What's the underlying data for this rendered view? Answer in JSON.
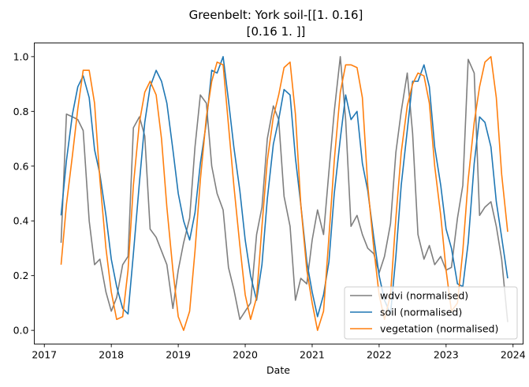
{
  "chart_data": {
    "type": "line",
    "title_lines": [
      "Greenbelt: York soil-[[1.   0.16]",
      "[0.16 1.  ]]"
    ],
    "xlabel": "Date",
    "ylabel": "",
    "x_ticks": [
      "2017",
      "2018",
      "2019",
      "2020",
      "2021",
      "2022",
      "2023",
      "2024"
    ],
    "y_ticks": [
      "0.0",
      "0.2",
      "0.4",
      "0.6",
      "0.8",
      "1.0"
    ],
    "xlim": [
      2016.85,
      2024.15
    ],
    "ylim": [
      -0.05,
      1.05
    ],
    "grid": false,
    "legend_position": "lower-right",
    "series": [
      {
        "name": "wdvi (normalised)",
        "color": "#7f7f7f",
        "points": [
          [
            2017.25,
            0.32
          ],
          [
            2017.33,
            0.79
          ],
          [
            2017.42,
            0.78
          ],
          [
            2017.5,
            0.77
          ],
          [
            2017.58,
            0.73
          ],
          [
            2017.67,
            0.4
          ],
          [
            2017.75,
            0.24
          ],
          [
            2017.83,
            0.26
          ],
          [
            2017.92,
            0.14
          ],
          [
            2018.0,
            0.07
          ],
          [
            2018.08,
            0.12
          ],
          [
            2018.17,
            0.24
          ],
          [
            2018.25,
            0.27
          ],
          [
            2018.33,
            0.74
          ],
          [
            2018.42,
            0.78
          ],
          [
            2018.5,
            0.71
          ],
          [
            2018.58,
            0.37
          ],
          [
            2018.67,
            0.34
          ],
          [
            2018.75,
            0.29
          ],
          [
            2018.83,
            0.24
          ],
          [
            2018.92,
            0.08
          ],
          [
            2019.0,
            0.22
          ],
          [
            2019.08,
            0.32
          ],
          [
            2019.17,
            0.41
          ],
          [
            2019.25,
            0.67
          ],
          [
            2019.33,
            0.86
          ],
          [
            2019.42,
            0.83
          ],
          [
            2019.5,
            0.6
          ],
          [
            2019.58,
            0.5
          ],
          [
            2019.67,
            0.44
          ],
          [
            2019.75,
            0.23
          ],
          [
            2019.83,
            0.15
          ],
          [
            2019.92,
            0.04
          ],
          [
            2020.0,
            0.07
          ],
          [
            2020.08,
            0.1
          ],
          [
            2020.17,
            0.35
          ],
          [
            2020.25,
            0.45
          ],
          [
            2020.33,
            0.7
          ],
          [
            2020.42,
            0.82
          ],
          [
            2020.5,
            0.77
          ],
          [
            2020.58,
            0.49
          ],
          [
            2020.67,
            0.38
          ],
          [
            2020.75,
            0.11
          ],
          [
            2020.83,
            0.19
          ],
          [
            2020.92,
            0.17
          ],
          [
            2021.0,
            0.33
          ],
          [
            2021.08,
            0.44
          ],
          [
            2021.17,
            0.35
          ],
          [
            2021.25,
            0.58
          ],
          [
            2021.33,
            0.8
          ],
          [
            2021.42,
            1.0
          ],
          [
            2021.5,
            0.77
          ],
          [
            2021.58,
            0.38
          ],
          [
            2021.67,
            0.42
          ],
          [
            2021.75,
            0.35
          ],
          [
            2021.83,
            0.3
          ],
          [
            2021.92,
            0.28
          ],
          [
            2022.0,
            0.21
          ],
          [
            2022.08,
            0.27
          ],
          [
            2022.17,
            0.39
          ],
          [
            2022.25,
            0.65
          ],
          [
            2022.33,
            0.8
          ],
          [
            2022.42,
            0.94
          ],
          [
            2022.5,
            0.72
          ],
          [
            2022.58,
            0.35
          ],
          [
            2022.67,
            0.26
          ],
          [
            2022.75,
            0.31
          ],
          [
            2022.83,
            0.24
          ],
          [
            2022.92,
            0.27
          ],
          [
            2023.0,
            0.22
          ],
          [
            2023.08,
            0.23
          ],
          [
            2023.17,
            0.41
          ],
          [
            2023.25,
            0.53
          ],
          [
            2023.33,
            0.99
          ],
          [
            2023.42,
            0.94
          ],
          [
            2023.5,
            0.42
          ],
          [
            2023.58,
            0.45
          ],
          [
            2023.67,
            0.47
          ],
          [
            2023.75,
            0.38
          ],
          [
            2023.83,
            0.26
          ],
          [
            2023.92,
            0.03
          ]
        ]
      },
      {
        "name": "soil (normalised)",
        "color": "#1f77b4",
        "points": [
          [
            2017.25,
            0.42
          ],
          [
            2017.33,
            0.62
          ],
          [
            2017.42,
            0.79
          ],
          [
            2017.5,
            0.89
          ],
          [
            2017.58,
            0.93
          ],
          [
            2017.67,
            0.85
          ],
          [
            2017.75,
            0.66
          ],
          [
            2017.83,
            0.57
          ],
          [
            2017.92,
            0.42
          ],
          [
            2018.0,
            0.26
          ],
          [
            2018.08,
            0.16
          ],
          [
            2018.17,
            0.08
          ],
          [
            2018.25,
            0.06
          ],
          [
            2018.33,
            0.28
          ],
          [
            2018.42,
            0.54
          ],
          [
            2018.5,
            0.76
          ],
          [
            2018.58,
            0.89
          ],
          [
            2018.67,
            0.95
          ],
          [
            2018.75,
            0.91
          ],
          [
            2018.83,
            0.83
          ],
          [
            2018.92,
            0.66
          ],
          [
            2019.0,
            0.5
          ],
          [
            2019.08,
            0.4
          ],
          [
            2019.17,
            0.33
          ],
          [
            2019.25,
            0.43
          ],
          [
            2019.33,
            0.61
          ],
          [
            2019.42,
            0.76
          ],
          [
            2019.5,
            0.95
          ],
          [
            2019.58,
            0.94
          ],
          [
            2019.67,
            1.0
          ],
          [
            2019.75,
            0.84
          ],
          [
            2019.83,
            0.67
          ],
          [
            2019.92,
            0.51
          ],
          [
            2020.0,
            0.33
          ],
          [
            2020.08,
            0.2
          ],
          [
            2020.17,
            0.11
          ],
          [
            2020.25,
            0.24
          ],
          [
            2020.33,
            0.48
          ],
          [
            2020.42,
            0.68
          ],
          [
            2020.5,
            0.77
          ],
          [
            2020.58,
            0.88
          ],
          [
            2020.67,
            0.86
          ],
          [
            2020.75,
            0.63
          ],
          [
            2020.83,
            0.46
          ],
          [
            2020.92,
            0.25
          ],
          [
            2021.0,
            0.14
          ],
          [
            2021.08,
            0.05
          ],
          [
            2021.17,
            0.13
          ],
          [
            2021.25,
            0.25
          ],
          [
            2021.33,
            0.5
          ],
          [
            2021.42,
            0.7
          ],
          [
            2021.5,
            0.86
          ],
          [
            2021.58,
            0.77
          ],
          [
            2021.67,
            0.8
          ],
          [
            2021.75,
            0.61
          ],
          [
            2021.83,
            0.51
          ],
          [
            2021.92,
            0.34
          ],
          [
            2022.0,
            0.2
          ],
          [
            2022.08,
            0.11
          ],
          [
            2022.17,
            0.06
          ],
          [
            2022.25,
            0.27
          ],
          [
            2022.33,
            0.53
          ],
          [
            2022.42,
            0.73
          ],
          [
            2022.5,
            0.91
          ],
          [
            2022.58,
            0.91
          ],
          [
            2022.67,
            0.97
          ],
          [
            2022.75,
            0.89
          ],
          [
            2022.83,
            0.67
          ],
          [
            2022.92,
            0.53
          ],
          [
            2023.0,
            0.37
          ],
          [
            2023.08,
            0.3
          ],
          [
            2023.17,
            0.17
          ],
          [
            2023.25,
            0.16
          ],
          [
            2023.33,
            0.32
          ],
          [
            2023.42,
            0.61
          ],
          [
            2023.5,
            0.78
          ],
          [
            2023.58,
            0.76
          ],
          [
            2023.67,
            0.67
          ],
          [
            2023.75,
            0.47
          ],
          [
            2023.83,
            0.34
          ],
          [
            2023.92,
            0.19
          ]
        ]
      },
      {
        "name": "vegetation (normalised)",
        "color": "#ff7f0e",
        "points": [
          [
            2017.25,
            0.24
          ],
          [
            2017.33,
            0.46
          ],
          [
            2017.42,
            0.64
          ],
          [
            2017.5,
            0.81
          ],
          [
            2017.58,
            0.95
          ],
          [
            2017.67,
            0.95
          ],
          [
            2017.75,
            0.83
          ],
          [
            2017.83,
            0.55
          ],
          [
            2017.92,
            0.3
          ],
          [
            2018.0,
            0.14
          ],
          [
            2018.08,
            0.04
          ],
          [
            2018.17,
            0.05
          ],
          [
            2018.25,
            0.22
          ],
          [
            2018.33,
            0.53
          ],
          [
            2018.42,
            0.76
          ],
          [
            2018.5,
            0.87
          ],
          [
            2018.58,
            0.91
          ],
          [
            2018.67,
            0.86
          ],
          [
            2018.75,
            0.7
          ],
          [
            2018.83,
            0.45
          ],
          [
            2018.92,
            0.22
          ],
          [
            2019.0,
            0.05
          ],
          [
            2019.08,
            0.0
          ],
          [
            2019.17,
            0.07
          ],
          [
            2019.25,
            0.29
          ],
          [
            2019.33,
            0.55
          ],
          [
            2019.42,
            0.78
          ],
          [
            2019.5,
            0.91
          ],
          [
            2019.58,
            0.98
          ],
          [
            2019.67,
            0.97
          ],
          [
            2019.75,
            0.75
          ],
          [
            2019.83,
            0.53
          ],
          [
            2019.92,
            0.31
          ],
          [
            2020.0,
            0.13
          ],
          [
            2020.08,
            0.04
          ],
          [
            2020.17,
            0.12
          ],
          [
            2020.25,
            0.38
          ],
          [
            2020.33,
            0.62
          ],
          [
            2020.42,
            0.78
          ],
          [
            2020.5,
            0.86
          ],
          [
            2020.58,
            0.96
          ],
          [
            2020.67,
            0.98
          ],
          [
            2020.75,
            0.79
          ],
          [
            2020.83,
            0.46
          ],
          [
            2020.92,
            0.22
          ],
          [
            2021.0,
            0.1
          ],
          [
            2021.08,
            0.0
          ],
          [
            2021.17,
            0.07
          ],
          [
            2021.25,
            0.34
          ],
          [
            2021.33,
            0.62
          ],
          [
            2021.42,
            0.87
          ],
          [
            2021.5,
            0.97
          ],
          [
            2021.58,
            0.97
          ],
          [
            2021.67,
            0.96
          ],
          [
            2021.75,
            0.85
          ],
          [
            2021.83,
            0.53
          ],
          [
            2021.92,
            0.3
          ],
          [
            2022.0,
            0.13
          ],
          [
            2022.08,
            0.04
          ],
          [
            2022.17,
            0.13
          ],
          [
            2022.25,
            0.41
          ],
          [
            2022.33,
            0.65
          ],
          [
            2022.42,
            0.82
          ],
          [
            2022.5,
            0.9
          ],
          [
            2022.58,
            0.94
          ],
          [
            2022.67,
            0.93
          ],
          [
            2022.75,
            0.83
          ],
          [
            2022.83,
            0.6
          ],
          [
            2022.92,
            0.42
          ],
          [
            2023.0,
            0.22
          ],
          [
            2023.08,
            0.07
          ],
          [
            2023.17,
            0.1
          ],
          [
            2023.25,
            0.29
          ],
          [
            2023.33,
            0.55
          ],
          [
            2023.42,
            0.76
          ],
          [
            2023.5,
            0.89
          ],
          [
            2023.58,
            0.98
          ],
          [
            2023.67,
            1.0
          ],
          [
            2023.75,
            0.85
          ],
          [
            2023.83,
            0.57
          ],
          [
            2023.92,
            0.36
          ]
        ]
      }
    ]
  }
}
